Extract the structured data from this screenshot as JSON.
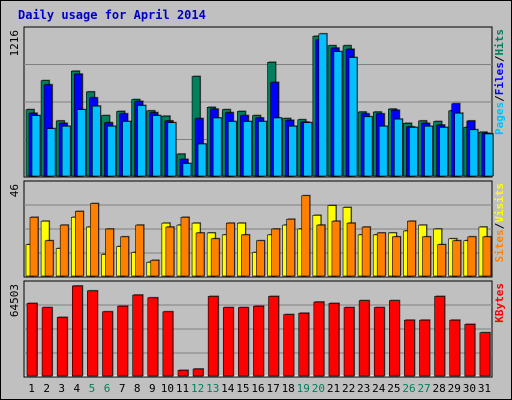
{
  "title": "Daily usage for April 2014",
  "colors": {
    "background": "#c0c0c0",
    "title": "#0000c0",
    "hits": "#00805c",
    "files": "#0000ff",
    "pages": "#00c0ff",
    "visits": "#ffff00",
    "sites": "#ff8000",
    "kbytes": "#ff0000",
    "weekend_day_label": "#00805c"
  },
  "chart_data": [
    {
      "type": "bar",
      "panel": "requests",
      "ymax": 1216,
      "ymax_label": "1216",
      "categories": [
        "1",
        "2",
        "3",
        "4",
        "5",
        "6",
        "7",
        "8",
        "9",
        "10",
        "11",
        "12",
        "13",
        "14",
        "15",
        "16",
        "17",
        "18",
        "19",
        "20",
        "21",
        "22",
        "23",
        "24",
        "25",
        "26",
        "27",
        "28",
        "29",
        "30",
        "31"
      ],
      "weekend_days": [
        "5",
        "6",
        "12",
        "13",
        "19",
        "20",
        "26",
        "27"
      ],
      "legend": [
        "Pages",
        "Files",
        "Hits"
      ],
      "series": [
        {
          "name": "Hits",
          "values": [
            560,
            805,
            465,
            885,
            710,
            510,
            545,
            645,
            550,
            505,
            185,
            840,
            580,
            560,
            545,
            510,
            960,
            485,
            475,
            1180,
            1100,
            1100,
            540,
            540,
            565,
            445,
            465,
            460,
            550,
            410,
            370
          ]
        },
        {
          "name": "Files",
          "values": [
            530,
            770,
            445,
            860,
            660,
            450,
            525,
            630,
            535,
            465,
            140,
            485,
            565,
            535,
            510,
            490,
            790,
            470,
            455,
            1150,
            1080,
            1070,
            525,
            525,
            555,
            415,
            445,
            430,
            610,
            465,
            360
          ]
        },
        {
          "name": "Pages",
          "values": [
            510,
            400,
            420,
            560,
            590,
            420,
            460,
            595,
            510,
            450,
            105,
            270,
            490,
            460,
            460,
            460,
            490,
            420,
            450,
            1200,
            1050,
            1000,
            500,
            420,
            480,
            410,
            420,
            410,
            530,
            390,
            355
          ]
        }
      ]
    },
    {
      "type": "bar",
      "panel": "visitors",
      "ymax": 46,
      "ymax_label": "46",
      "legend": [
        "Sites",
        "Visits"
      ],
      "series": [
        {
          "name": "Visits",
          "values": [
            16,
            28,
            14,
            30,
            25,
            11,
            15,
            12,
            7,
            27,
            26,
            27,
            22,
            21,
            27,
            12,
            21,
            26,
            24,
            31,
            36,
            35,
            21,
            21,
            22,
            23,
            26,
            24,
            19,
            18,
            25
          ]
        },
        {
          "name": "Sites",
          "values": [
            30,
            18,
            26,
            33,
            37,
            24,
            20,
            26,
            8,
            25,
            30,
            22,
            19,
            27,
            21,
            18,
            24,
            29,
            41,
            26,
            28,
            27,
            25,
            22,
            20,
            28,
            20,
            16,
            18,
            20,
            20
          ]
        }
      ]
    },
    {
      "type": "bar",
      "panel": "kbytes",
      "ymax": 64503,
      "ymax_label": "64503",
      "legend": [
        "KBytes"
      ],
      "series": [
        {
          "name": "KBytes",
          "values": [
            52000,
            49000,
            42000,
            64503,
            61000,
            46000,
            50000,
            58000,
            56000,
            46000,
            4000,
            5000,
            57000,
            49000,
            49000,
            50000,
            57000,
            44000,
            45000,
            53000,
            52000,
            49000,
            54000,
            49000,
            54000,
            40000,
            40000,
            57000,
            40000,
            37000,
            31000
          ]
        }
      ]
    }
  ]
}
